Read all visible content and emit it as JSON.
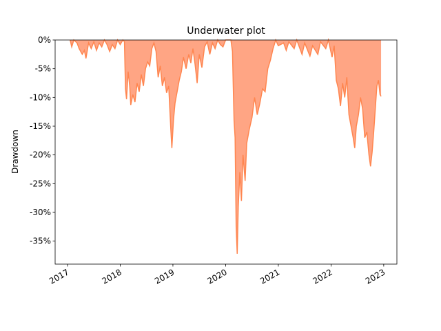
{
  "chart_data": {
    "type": "area",
    "title": "Underwater plot",
    "ylabel": "Drawdown",
    "fill_color": "#ffa584",
    "line_color": "#ff8650",
    "xlim": [
      2016.765,
      2023.25
    ],
    "xticks": [
      2017,
      2018,
      2019,
      2020,
      2021,
      2022,
      2023
    ],
    "ylim": [
      -39,
      0
    ],
    "yticks": [
      {
        "value": 0,
        "label": "0%"
      },
      {
        "value": -5,
        "label": "-5%"
      },
      {
        "value": -10,
        "label": "-10%"
      },
      {
        "value": -15,
        "label": "-15%"
      },
      {
        "value": -20,
        "label": "-20%"
      },
      {
        "value": -25,
        "label": "-25%"
      },
      {
        "value": -30,
        "label": "-30%"
      },
      {
        "value": -35,
        "label": "-35%"
      }
    ],
    "x": [
      2017.05,
      2017.08,
      2017.12,
      2017.18,
      2017.22,
      2017.28,
      2017.32,
      2017.35,
      2017.4,
      2017.45,
      2017.5,
      2017.55,
      2017.6,
      2017.65,
      2017.7,
      2017.75,
      2017.8,
      2017.85,
      2017.9,
      2017.95,
      2018.0,
      2018.05,
      2018.08,
      2018.1,
      2018.12,
      2018.15,
      2018.18,
      2018.2,
      2018.24,
      2018.28,
      2018.32,
      2018.36,
      2018.4,
      2018.44,
      2018.48,
      2018.52,
      2018.56,
      2018.6,
      2018.64,
      2018.68,
      2018.72,
      2018.76,
      2018.8,
      2018.84,
      2018.88,
      2018.92,
      2018.96,
      2018.98,
      2019.01,
      2019.04,
      2019.08,
      2019.12,
      2019.16,
      2019.2,
      2019.25,
      2019.3,
      2019.34,
      2019.38,
      2019.42,
      2019.46,
      2019.5,
      2019.55,
      2019.6,
      2019.65,
      2019.7,
      2019.75,
      2019.8,
      2019.85,
      2019.9,
      2019.95,
      2020.0,
      2020.1,
      2020.13,
      2020.16,
      2020.18,
      2020.2,
      2020.22,
      2020.24,
      2020.27,
      2020.3,
      2020.33,
      2020.37,
      2020.4,
      2020.45,
      2020.5,
      2020.55,
      2020.6,
      2020.65,
      2020.7,
      2020.75,
      2020.8,
      2020.85,
      2020.9,
      2020.95,
      2021.0,
      2021.1,
      2021.15,
      2021.2,
      2021.3,
      2021.35,
      2021.45,
      2021.5,
      2021.6,
      2021.65,
      2021.75,
      2021.8,
      2021.9,
      2021.95,
      2022.02,
      2022.06,
      2022.1,
      2022.14,
      2022.18,
      2022.22,
      2022.26,
      2022.3,
      2022.34,
      2022.38,
      2022.42,
      2022.45,
      2022.48,
      2022.52,
      2022.56,
      2022.6,
      2022.64,
      2022.68,
      2022.72,
      2022.75,
      2022.78,
      2022.81,
      2022.84,
      2022.87,
      2022.9,
      2022.93,
      2022.95
    ],
    "values": [
      0,
      -1.2,
      0,
      -0.5,
      -1.5,
      -2.5,
      -1.8,
      -3.2,
      -0.5,
      -1.5,
      -0.3,
      -1.8,
      -0.5,
      -1.2,
      0,
      -0.8,
      -2,
      -0.8,
      -1.5,
      0,
      -0.8,
      0,
      -0.3,
      -8.5,
      -10.3,
      -5.5,
      -8,
      -11.3,
      -9.5,
      -10.8,
      -7.5,
      -9,
      -6,
      -8,
      -5,
      -3.8,
      -4.5,
      -1.5,
      -0.5,
      -2,
      -6.5,
      -4.5,
      -8,
      -6.5,
      -9.2,
      -8,
      -15.5,
      -18.8,
      -14,
      -11,
      -9,
      -7,
      -5.5,
      -3,
      -5,
      -2.5,
      -4,
      -1.5,
      -4.2,
      -7.5,
      -2.5,
      -4.8,
      -1.2,
      -0.3,
      -2.5,
      -0.5,
      -1.5,
      0,
      -0.8,
      -1.2,
      0,
      0,
      -2,
      -14,
      -17,
      -32.5,
      -37.2,
      -29,
      -23,
      -28,
      -20,
      -24.5,
      -18,
      -15.5,
      -13.5,
      -10,
      -13,
      -11,
      -8.5,
      -9,
      -5,
      -3.5,
      -1.5,
      0,
      -1,
      -0.5,
      -1.8,
      -0.3,
      -1.5,
      0,
      -2.5,
      -0.5,
      -2.8,
      -1,
      -2.5,
      -0.3,
      -1.5,
      0,
      -3,
      -1,
      -7,
      -8.5,
      -11.5,
      -7.5,
      -10,
      -6.5,
      -13,
      -15,
      -17,
      -18.8,
      -15,
      -13,
      -10,
      -12,
      -17,
      -16,
      -20,
      -22,
      -19.5,
      -16,
      -12,
      -8,
      -7,
      -9.5,
      -9.8
    ]
  }
}
